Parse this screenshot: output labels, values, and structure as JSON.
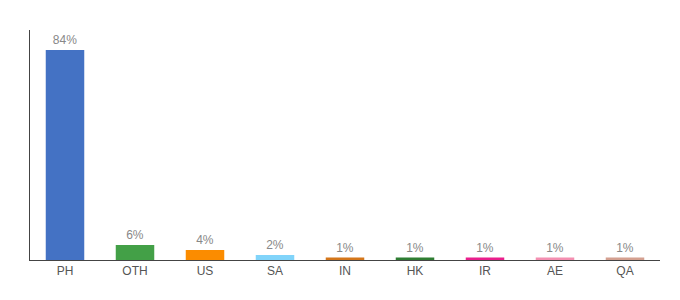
{
  "chart_data": {
    "type": "bar",
    "categories": [
      "PH",
      "OTH",
      "US",
      "SA",
      "IN",
      "HK",
      "IR",
      "AE",
      "QA"
    ],
    "values": [
      84,
      6,
      4,
      2,
      1,
      1,
      1,
      1,
      1
    ],
    "value_labels": [
      "84%",
      "6%",
      "4%",
      "2%",
      "1%",
      "1%",
      "1%",
      "1%",
      "1%"
    ],
    "colors": [
      "#4472c4",
      "#43a047",
      "#fb8c00",
      "#81d4fa",
      "#d4761a",
      "#2e7d32",
      "#e91e8c",
      "#f48fb1",
      "#d4a090"
    ],
    "ylim": [
      0,
      92
    ],
    "data_labels": true,
    "tick_labels": "x",
    "grid": false
  }
}
